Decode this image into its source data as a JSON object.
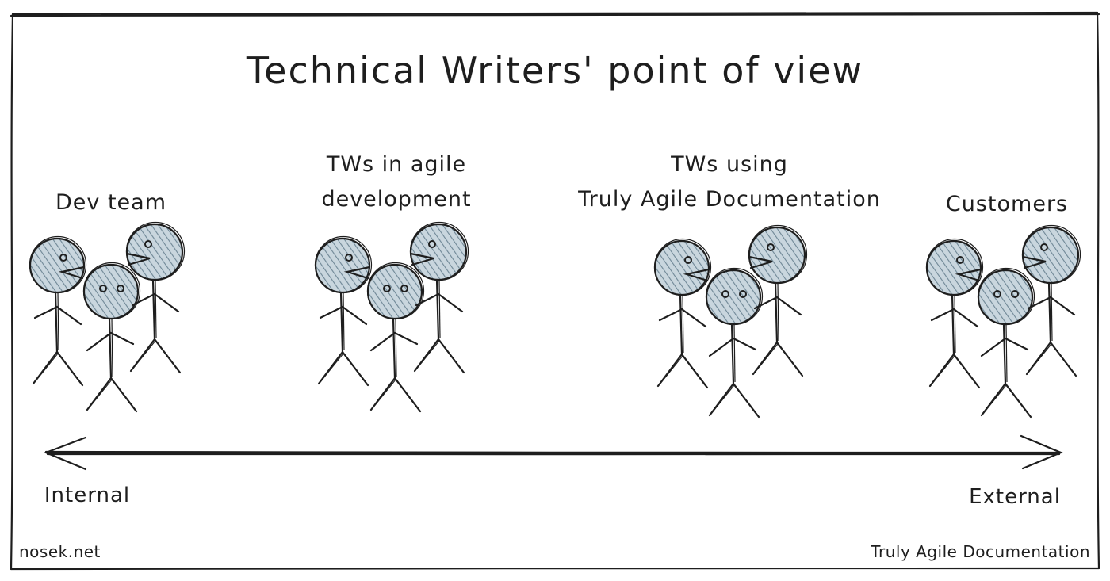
{
  "title": "Technical Writers' point of view",
  "groups": [
    {
      "label_line1": "Dev team",
      "label_line2": ""
    },
    {
      "label_line1": "TWs in agile",
      "label_line2": "development"
    },
    {
      "label_line1": "TWs using",
      "label_line2": "Truly Agile Documentation"
    },
    {
      "label_line1": "Customers",
      "label_line2": ""
    }
  ],
  "axis": {
    "left_label": "Internal",
    "right_label": "External"
  },
  "footer": {
    "left": "nosek.net",
    "right": "Truly Agile Documentation"
  },
  "colors": {
    "ink": "#1e1e1e",
    "head_fill": "#a5b8c4",
    "background": "#ffffff"
  }
}
